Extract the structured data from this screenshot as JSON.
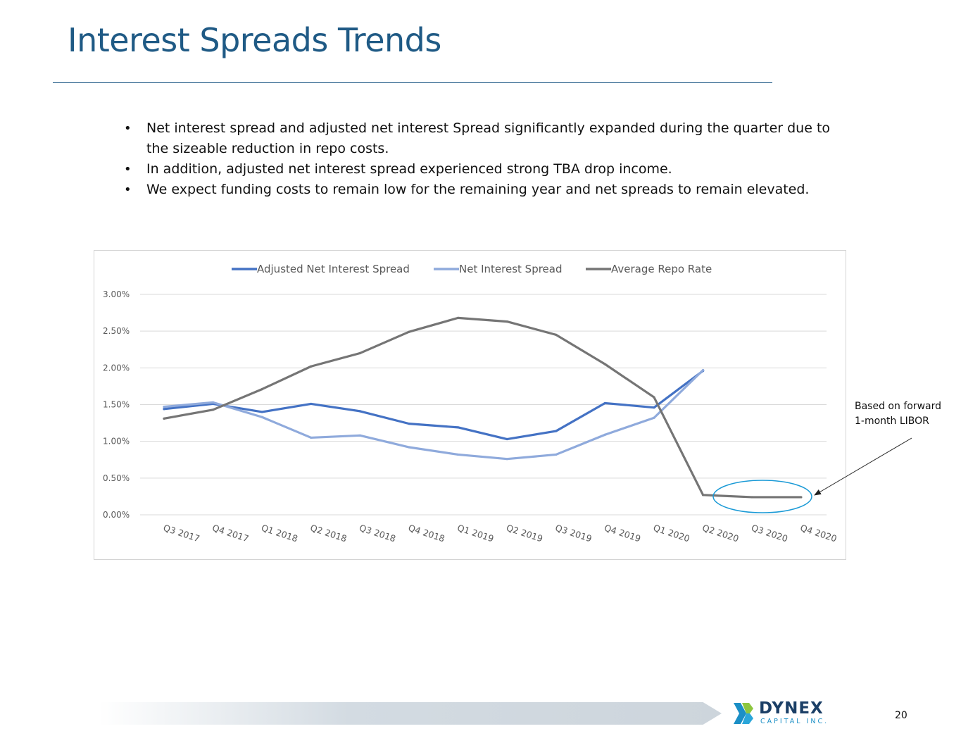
{
  "slide": {
    "title": "Interest Spreads Trends",
    "bullets": [
      "Net interest spread and adjusted net interest Spread significantly expanded during the quarter due to the sizeable reduction in repo costs.",
      "In addition, adjusted net interest spread experienced strong TBA drop income.",
      "We expect funding costs to remain low for the remaining year and net spreads to remain elevated."
    ],
    "bullet_glyph": "•",
    "annotation": {
      "line1": "Based on forward",
      "line2": "1-month LIBOR"
    },
    "page_number": "20"
  },
  "logo": {
    "name": "DYNEX",
    "subtitle": "CAPITAL INC."
  },
  "chart_data": {
    "type": "line",
    "title": "",
    "xlabel": "",
    "ylabel": "",
    "ylim": [
      0,
      3
    ],
    "y_ticks": [
      0,
      0.5,
      1,
      1.5,
      2,
      2.5,
      3
    ],
    "y_tick_labels": [
      "0.00%",
      "0.50%",
      "1.00%",
      "1.50%",
      "2.00%",
      "2.50%",
      "3.00%"
    ],
    "legend_position": "top",
    "grid": true,
    "categories": [
      "Q3 2017",
      "Q4 2017",
      "Q1 2018",
      "Q2 2018",
      "Q3 2018",
      "Q4 2018",
      "Q1 2019",
      "Q2 2019",
      "Q3 2019",
      "Q4 2019",
      "Q1 2020",
      "Q2 2020",
      "Q3 2020",
      "Q4 2020"
    ],
    "series": [
      {
        "name": "Adjusted Net Interest Spread",
        "color": "#4472c4",
        "values": [
          1.44,
          1.51,
          1.4,
          1.51,
          1.41,
          1.24,
          1.19,
          1.03,
          1.14,
          1.52,
          1.46,
          1.96,
          null,
          null
        ]
      },
      {
        "name": "Net Interest Spread",
        "color": "#8faadc",
        "values": [
          1.47,
          1.53,
          1.33,
          1.05,
          1.08,
          0.92,
          0.82,
          0.76,
          0.82,
          1.09,
          1.32,
          1.97,
          null,
          null
        ]
      },
      {
        "name": "Average Repo Rate",
        "color": "#757575",
        "values": [
          1.31,
          1.43,
          1.71,
          2.02,
          2.2,
          2.49,
          2.68,
          2.63,
          2.45,
          2.05,
          1.6,
          0.27,
          0.24,
          0.24
        ]
      }
    ],
    "highlight": {
      "description": "Q2 2020–Q4 2020 repo rate",
      "color": "#1a9ad6"
    }
  }
}
